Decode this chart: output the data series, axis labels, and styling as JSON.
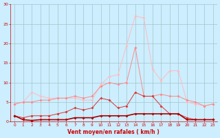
{
  "x": [
    0,
    1,
    2,
    3,
    4,
    5,
    6,
    7,
    8,
    9,
    10,
    11,
    12,
    13,
    14,
    15,
    16,
    17,
    18,
    19,
    20,
    21,
    22,
    23
  ],
  "line_lightest": [
    4.5,
    5.0,
    7.5,
    6.5,
    6.0,
    6.0,
    6.0,
    6.0,
    5.5,
    5.5,
    9.5,
    11.5,
    12.0,
    19.5,
    27.0,
    26.5,
    13.5,
    10.5,
    13.0,
    13.0,
    5.0,
    4.5,
    4.0,
    4.5
  ],
  "line_light": [
    4.5,
    5.0,
    5.0,
    5.5,
    5.5,
    6.0,
    6.0,
    6.5,
    6.0,
    6.5,
    9.0,
    10.0,
    9.5,
    10.0,
    19.0,
    6.5,
    6.5,
    7.0,
    6.5,
    6.5,
    5.5,
    5.0,
    4.0,
    4.5
  ],
  "line_medium": [
    1.5,
    1.0,
    1.5,
    1.5,
    1.5,
    2.0,
    2.5,
    3.5,
    3.0,
    3.5,
    6.0,
    5.5,
    3.5,
    4.0,
    7.5,
    6.5,
    6.5,
    4.0,
    2.0,
    2.0,
    1.0,
    0.5,
    0.5,
    0.5
  ],
  "line_dark": [
    1.5,
    0.5,
    0.3,
    0.5,
    0.5,
    0.5,
    0.5,
    1.0,
    1.0,
    1.0,
    1.5,
    1.5,
    1.5,
    1.5,
    2.0,
    2.0,
    2.0,
    2.0,
    2.0,
    2.0,
    0.5,
    0.5,
    0.5,
    0.5
  ],
  "color_lightest": "#ffbbbb",
  "color_light": "#ff8888",
  "color_medium": "#dd3333",
  "color_dark": "#aa0000",
  "bg_color": "#cceeff",
  "grid_color": "#99bbbb",
  "text_color": "#cc0000",
  "xlabel": "Vent moyen/en rafales ( km/h )",
  "ylim": [
    0,
    30
  ],
  "xlim": [
    0,
    23
  ],
  "yticks": [
    0,
    5,
    10,
    15,
    20,
    25,
    30
  ],
  "xticks": [
    0,
    1,
    2,
    3,
    4,
    5,
    6,
    7,
    8,
    9,
    10,
    11,
    12,
    13,
    14,
    15,
    16,
    17,
    18,
    19,
    20,
    21,
    22,
    23
  ]
}
